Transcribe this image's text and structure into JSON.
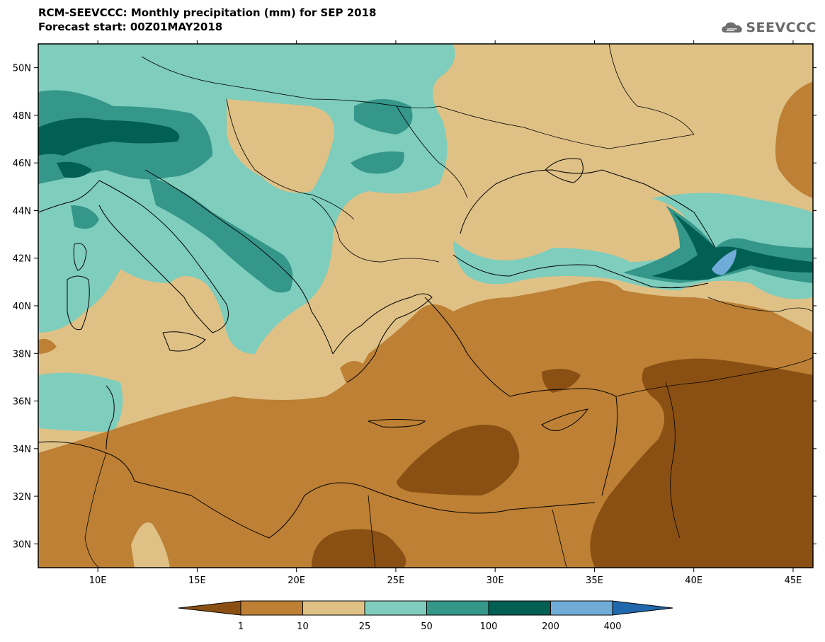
{
  "header": {
    "title_line1": "RCM-SEEVCCC: Monthly precipitation (mm) for SEP 2018",
    "title_line2": "Forecast start: 00Z01MAY2018",
    "logo_text": "SEEVCCC",
    "logo_icon": "cloud-icon"
  },
  "map": {
    "lon_range": [
      7,
      46
    ],
    "lat_range": [
      29,
      51
    ],
    "x_ticks": [
      "10E",
      "15E",
      "20E",
      "25E",
      "30E",
      "35E",
      "40E",
      "45E"
    ],
    "y_ticks": [
      "50N",
      "48N",
      "46N",
      "44N",
      "42N",
      "40N",
      "38N",
      "36N",
      "34N",
      "32N",
      "30N"
    ]
  },
  "legend": {
    "labels": [
      "1",
      "10",
      "25",
      "50",
      "100",
      "200",
      "400"
    ],
    "colors": [
      "#8a5013",
      "#bd8035",
      "#dfc186",
      "#7fcdbc",
      "#35968a",
      "#015f54",
      "#70acd8",
      "#2167ab"
    ]
  }
}
